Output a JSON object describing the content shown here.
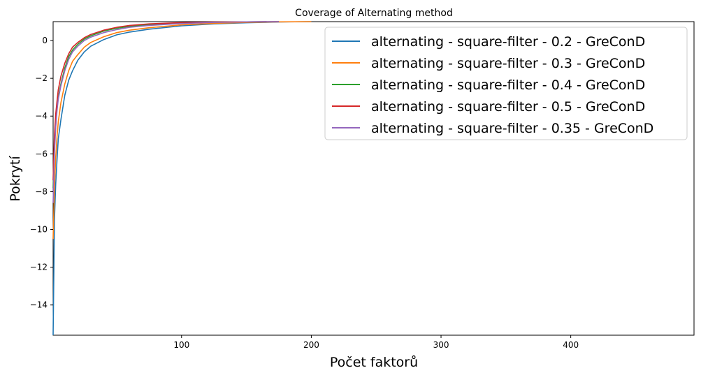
{
  "chart_data": {
    "type": "line",
    "title": "Coverage of Alternating method",
    "xlabel": "Počet faktorů",
    "ylabel": "Pokrytí",
    "xlim": [
      1,
      495
    ],
    "ylim": [
      -15.6,
      1.0
    ],
    "xticks": [
      100,
      200,
      300,
      400
    ],
    "yticks": [
      0,
      -2,
      -4,
      -6,
      -8,
      -10,
      -12,
      -14
    ],
    "legend_position": "top-right",
    "grid": false,
    "series": [
      {
        "name": "alternating - square-filter - 0.2 - GreConD",
        "color": "#1f77b4",
        "x": [
          1,
          2,
          3,
          4,
          5,
          7,
          10,
          13,
          16,
          20,
          25,
          30,
          40,
          50,
          60,
          75,
          100,
          125,
          150,
          175,
          200
        ],
        "y": [
          -15.6,
          -9.5,
          -7.6,
          -6.3,
          -5.2,
          -4.2,
          -2.9,
          -2.1,
          -1.6,
          -1.05,
          -0.6,
          -0.3,
          0.05,
          0.3,
          0.45,
          0.6,
          0.78,
          0.88,
          0.94,
          0.98,
          1.0
        ]
      },
      {
        "name": "alternating - square-filter - 0.3 - GreConD",
        "color": "#ff7f0e",
        "x": [
          1,
          2,
          3,
          4,
          5,
          7,
          10,
          13,
          16,
          20,
          25,
          30,
          40,
          50,
          60,
          75,
          100,
          125,
          150,
          175,
          200
        ],
        "y": [
          -10.5,
          -7.8,
          -6.2,
          -5.1,
          -4.3,
          -3.3,
          -2.3,
          -1.6,
          -1.1,
          -0.75,
          -0.35,
          -0.1,
          0.2,
          0.42,
          0.55,
          0.68,
          0.83,
          0.91,
          0.96,
          0.99,
          1.0
        ]
      },
      {
        "name": "alternating - square-filter - 0.4 - GreConD",
        "color": "#2ca02c",
        "x": [
          1,
          2,
          3,
          4,
          5,
          7,
          10,
          13,
          16,
          20,
          25,
          30,
          40,
          50,
          60,
          75,
          100,
          125,
          150,
          175
        ],
        "y": [
          -7.8,
          -5.6,
          -4.4,
          -3.6,
          -3.0,
          -2.3,
          -1.45,
          -0.85,
          -0.5,
          -0.2,
          0.08,
          0.25,
          0.5,
          0.65,
          0.75,
          0.84,
          0.93,
          0.97,
          0.99,
          1.0
        ]
      },
      {
        "name": "alternating - square-filter - 0.5 - GreConD",
        "color": "#d62728",
        "x": [
          1,
          2,
          3,
          4,
          5,
          7,
          10,
          13,
          16,
          20,
          25,
          30,
          40,
          50,
          60,
          75,
          100,
          125,
          150,
          175
        ],
        "y": [
          -7.4,
          -5.0,
          -3.9,
          -3.2,
          -2.6,
          -1.9,
          -1.2,
          -0.7,
          -0.35,
          -0.1,
          0.15,
          0.32,
          0.55,
          0.7,
          0.8,
          0.88,
          0.95,
          0.98,
          0.99,
          1.0
        ]
      },
      {
        "name": "alternating - square-filter - 0.35 - GreConD",
        "color": "#9467bd",
        "x": [
          1,
          2,
          3,
          4,
          5,
          7,
          10,
          13,
          16,
          20,
          25,
          30,
          40,
          50,
          60,
          75,
          100,
          125,
          150,
          175
        ],
        "y": [
          -8.6,
          -6.0,
          -4.6,
          -3.7,
          -3.1,
          -2.4,
          -1.6,
          -1.0,
          -0.6,
          -0.3,
          0.0,
          0.18,
          0.42,
          0.58,
          0.7,
          0.8,
          0.9,
          0.96,
          0.99,
          1.0
        ]
      }
    ]
  }
}
